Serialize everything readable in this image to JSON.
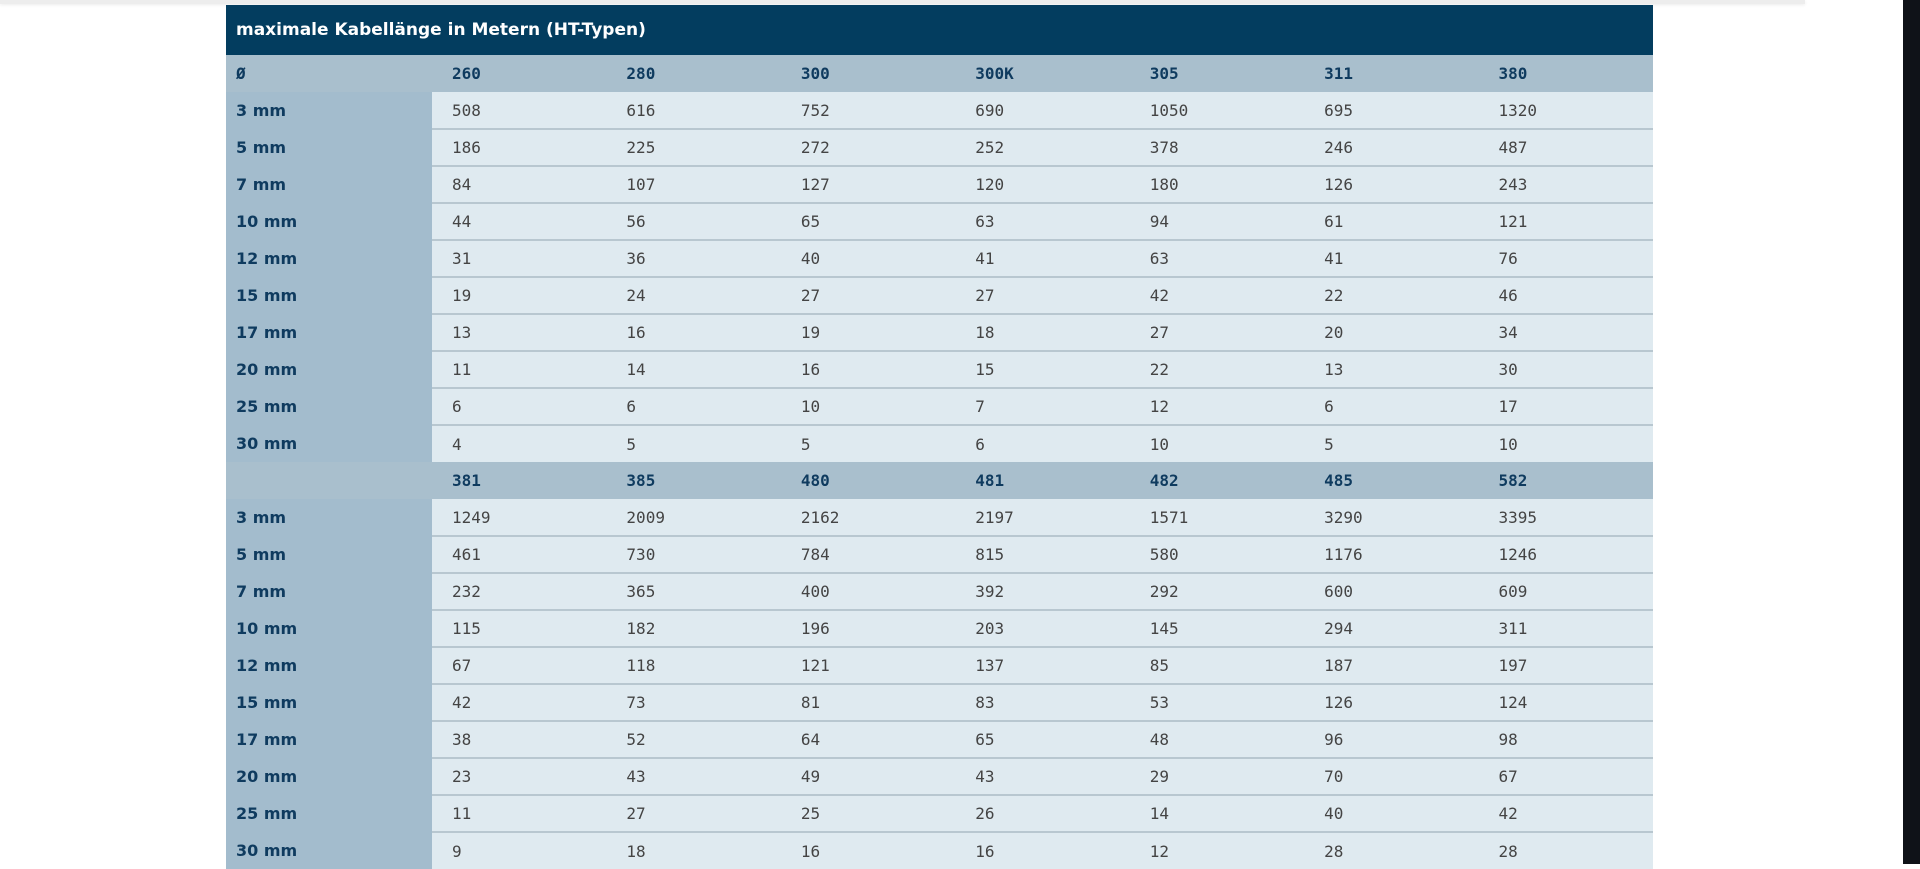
{
  "title": "maximale Kabellänge in Metern (HT-Typen)",
  "diameter_label": "Ø",
  "row_labels": [
    "3 mm",
    "5 mm",
    "7 mm",
    "10 mm",
    "12 mm",
    "15 mm",
    "17 mm",
    "20 mm",
    "25 mm",
    "30 mm"
  ],
  "blocks": [
    {
      "corner": "Ø",
      "columns": [
        "260",
        "280",
        "300",
        "300K",
        "305",
        "311",
        "380"
      ],
      "rows": [
        [
          "508",
          "616",
          "752",
          "690",
          "1050",
          "695",
          "1320"
        ],
        [
          "186",
          "225",
          "272",
          "252",
          "378",
          "246",
          "487"
        ],
        [
          "84",
          "107",
          "127",
          "120",
          "180",
          "126",
          "243"
        ],
        [
          "44",
          "56",
          "65",
          "63",
          "94",
          "61",
          "121"
        ],
        [
          "31",
          "36",
          "40",
          "41",
          "63",
          "41",
          "76"
        ],
        [
          "19",
          "24",
          "27",
          "27",
          "42",
          "22",
          "46"
        ],
        [
          "13",
          "16",
          "19",
          "18",
          "27",
          "20",
          "34"
        ],
        [
          "11",
          "14",
          "16",
          "15",
          "22",
          "13",
          "30"
        ],
        [
          "6",
          "6",
          "10",
          "7",
          "12",
          "6",
          "17"
        ],
        [
          "4",
          "5",
          "5",
          "6",
          "10",
          "5",
          "10"
        ]
      ]
    },
    {
      "corner": "",
      "columns": [
        "381",
        "385",
        "480",
        "481",
        "482",
        "485",
        "582"
      ],
      "rows": [
        [
          "1249",
          "2009",
          "2162",
          "2197",
          "1571",
          "3290",
          "3395"
        ],
        [
          "461",
          "730",
          "784",
          "815",
          "580",
          "1176",
          "1246"
        ],
        [
          "232",
          "365",
          "400",
          "392",
          "292",
          "600",
          "609"
        ],
        [
          "115",
          "182",
          "196",
          "203",
          "145",
          "294",
          "311"
        ],
        [
          "67",
          "118",
          "121",
          "137",
          "85",
          "187",
          "197"
        ],
        [
          "42",
          "73",
          "81",
          "83",
          "53",
          "126",
          "124"
        ],
        [
          "38",
          "52",
          "64",
          "65",
          "48",
          "96",
          "98"
        ],
        [
          "23",
          "43",
          "49",
          "43",
          "29",
          "70",
          "67"
        ],
        [
          "11",
          "27",
          "25",
          "26",
          "14",
          "40",
          "42"
        ],
        [
          "9",
          "18",
          "16",
          "16",
          "12",
          "28",
          "28"
        ]
      ]
    }
  ],
  "colors": {
    "title_bg": "#033d5f",
    "header_bg": "#a9bfcd",
    "label_bg": "#a3bccd",
    "cell_bg": "#dfeaf0",
    "header_text": "#0f3b5f"
  }
}
